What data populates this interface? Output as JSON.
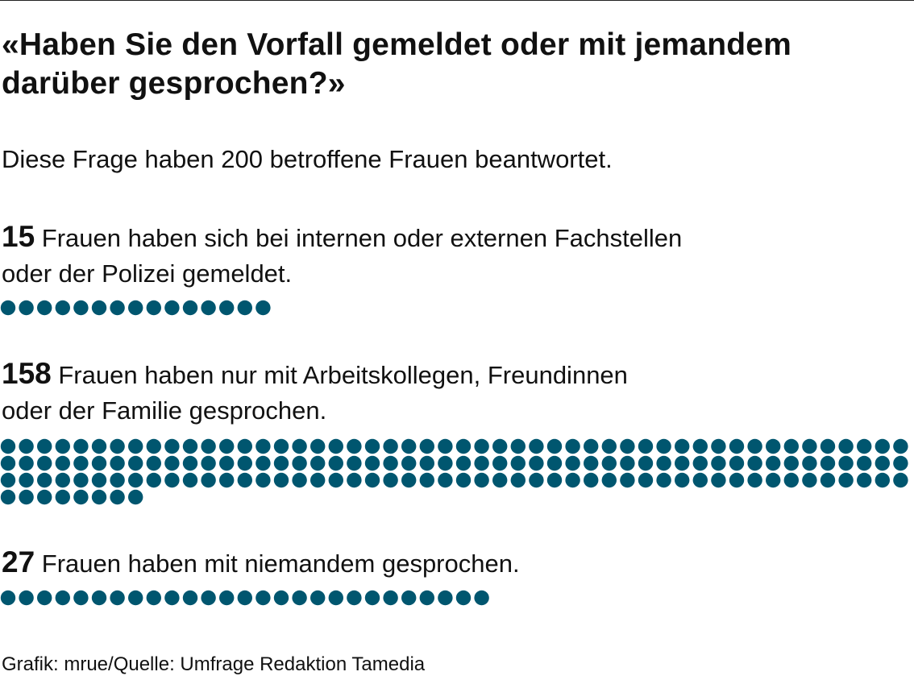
{
  "title": "«Haben Sie den Vorfall gemeldet oder mit jemandem darüber gesprochen?»",
  "subtitle": "Diese Frage haben 200 betroffene Frauen beantwortet.",
  "source": "Grafik: mrue/Quelle: Umfrage Redaktion Tamedia",
  "colors": {
    "dot": "#00566f",
    "text": "#111111"
  },
  "chart_data": {
    "type": "dot-matrix",
    "title": "«Haben Sie den Vorfall gemeldet oder mit jemandem darüber gesprochen?»",
    "total": 200,
    "groups": [
      {
        "count": "15",
        "value": 15,
        "text_line1": "Frauen haben sich bei internen oder externen Fachstellen",
        "text_line2": "oder der Polizei gemeldet."
      },
      {
        "count": "158",
        "value": 158,
        "text_line1": "Frauen haben nur mit Arbeitskollegen, Freundinnen",
        "text_line2": "oder der Familie gesprochen."
      },
      {
        "count": "27",
        "value": 27,
        "text_line1": "Frauen haben mit niemandem gesprochen.",
        "text_line2": ""
      }
    ]
  }
}
